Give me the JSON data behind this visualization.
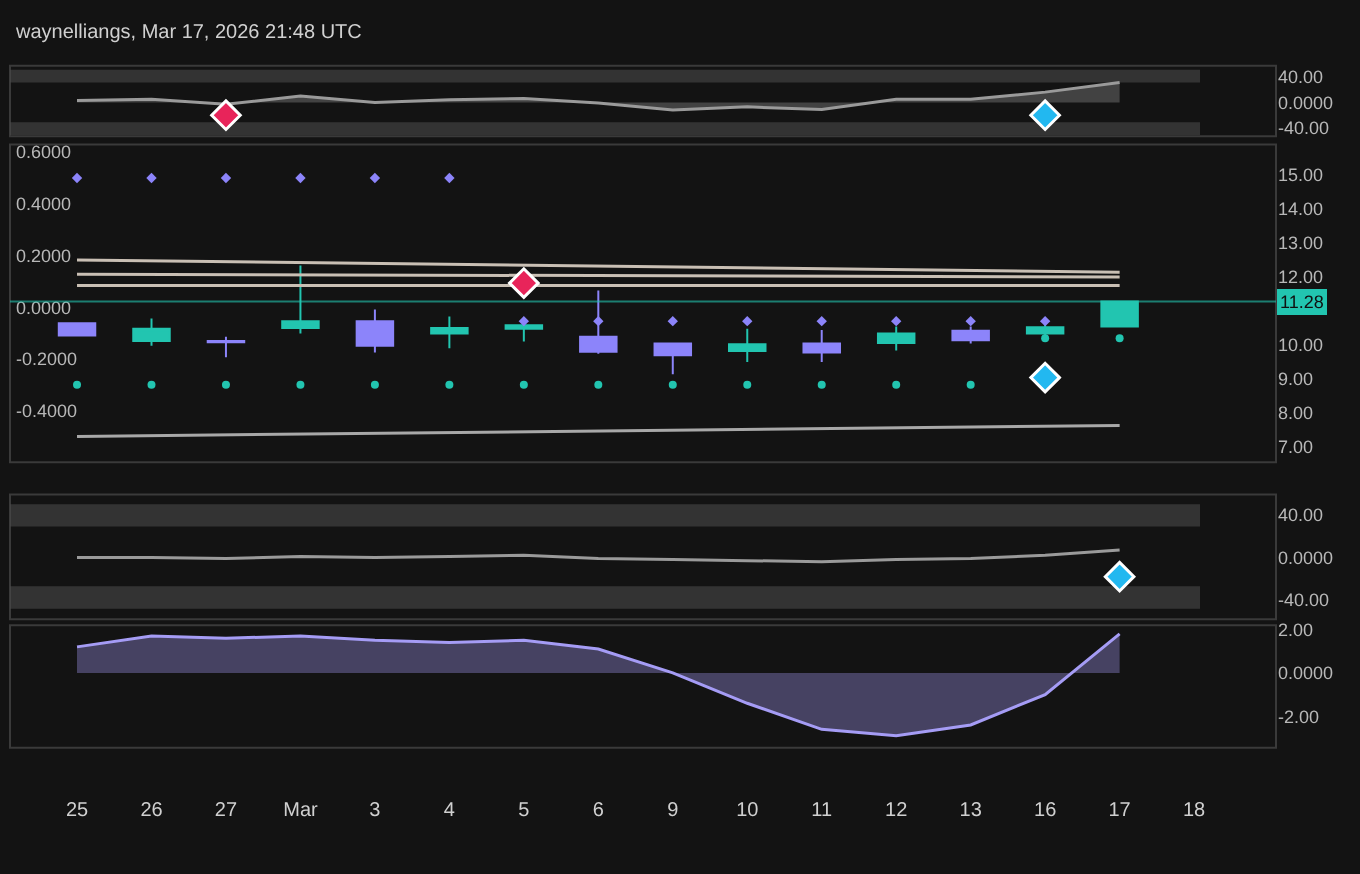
{
  "chart_data": [
    {
      "type": "line",
      "title": "waynelliangs, Mar 17, 2026 21:48 UTC",
      "categories": [
        "25",
        "26",
        "27",
        "Mar",
        "3",
        "4",
        "5",
        "6",
        "9",
        "10",
        "11",
        "12",
        "13",
        "16",
        "17",
        "18"
      ],
      "series": [
        {
          "type": "area",
          "color": "#9a9a9a",
          "values": [
            3,
            5,
            -3,
            10,
            0,
            4,
            6,
            -1,
            -12,
            -7,
            -11,
            5,
            5,
            16,
            31,
            null
          ]
        },
        {
          "type": "scatter",
          "marker": "diamond",
          "color": "#e8245a",
          "x": [
            "27"
          ],
          "values": [
            -20
          ]
        },
        {
          "type": "scatter",
          "marker": "diamond",
          "color": "#22b8f0",
          "x": [
            "16"
          ],
          "values": [
            -20
          ]
        }
      ],
      "ylim": [
        -53,
        57
      ],
      "yticks": [
        {
          "value": 40,
          "label": "40.00"
        },
        {
          "value": 0,
          "label": "0.0000"
        },
        {
          "value": -40,
          "label": "-40.00"
        }
      ],
      "bands": [
        {
          "axis": "y",
          "from": 31,
          "to": 51,
          "color": "#4a4a4a"
        },
        {
          "axis": "y",
          "from": -51,
          "to": -31,
          "color": "#4a4a4a"
        }
      ],
      "tick_labels": "y"
    },
    {
      "type": "candlestick",
      "categories": [
        "25",
        "26",
        "27",
        "Mar",
        "3",
        "4",
        "5",
        "6",
        "9",
        "10",
        "11",
        "12",
        "13",
        "16",
        "17",
        "18"
      ],
      "series": [
        {
          "type": "line",
          "axis": "y2",
          "color": "#c9bfb4",
          "x": [
            "25",
            "17"
          ],
          "values": [
            12.5,
            12.14
          ]
        },
        {
          "type": "line",
          "axis": "y2",
          "color": "#c9bfb4",
          "x": [
            "25",
            "17"
          ],
          "values": [
            12.08,
            12.0
          ]
        },
        {
          "type": "line",
          "axis": "y2",
          "color": "#c9bfb4",
          "x": [
            "25",
            "17"
          ],
          "values": [
            11.75,
            11.75
          ]
        },
        {
          "type": "line",
          "axis": "y2",
          "color": "#a8a8a8",
          "x": [
            "25",
            "17"
          ],
          "values": [
            7.31,
            7.63
          ]
        },
        {
          "type": "scatter",
          "axis": "y",
          "marker": "diamond",
          "color": "#8c84fa",
          "x": [
            "25",
            "26",
            "27",
            "Mar",
            "3",
            "4"
          ],
          "values": [
            0.5,
            0.5,
            0.5,
            0.5,
            0.5,
            0.5
          ]
        },
        {
          "type": "scatter",
          "axis": "y",
          "marker": "circle",
          "color": "#22c5b0",
          "x": [
            "25",
            "26",
            "27",
            "Mar",
            "3",
            "4",
            "5",
            "6",
            "9",
            "10",
            "11",
            "12",
            "13"
          ],
          "values": [
            -0.3,
            -0.3,
            -0.3,
            -0.3,
            -0.3,
            -0.3,
            -0.3,
            -0.3,
            -0.3,
            -0.3,
            -0.3,
            -0.3,
            -0.3
          ]
        },
        {
          "type": "candlestick",
          "axis": "y2",
          "colors": [
            "#8c84fa",
            "#22c5b0",
            "#8c84fa",
            "#22c5b0",
            "#8c84fa",
            "#22c5b0",
            "#22c5b0",
            "#8c84fa",
            "#8c84fa",
            "#22c5b0",
            "#8c84fa",
            "#22c5b0",
            "#8c84fa",
            "#22c5b0",
            "#22c5b0",
            null
          ],
          "ohlc": [
            [
              10.64,
              10.64,
              10.28,
              10.28
            ],
            [
              10.12,
              10.78,
              9.98,
              10.48
            ],
            [
              10.12,
              10.24,
              9.64,
              10.08
            ],
            [
              10.5,
              12.34,
              10.34,
              10.7
            ],
            [
              10.7,
              11.04,
              9.78,
              9.98
            ],
            [
              10.34,
              10.84,
              9.9,
              10.5
            ],
            [
              10.48,
              10.74,
              10.1,
              10.58
            ],
            [
              10.24,
              11.6,
              9.74,
              9.8
            ],
            [
              10.04,
              10.04,
              9.14,
              9.7
            ],
            [
              9.82,
              10.48,
              9.5,
              10.02
            ],
            [
              10.04,
              10.44,
              9.5,
              9.78
            ],
            [
              10.06,
              10.54,
              9.84,
              10.34
            ],
            [
              10.42,
              10.54,
              10.04,
              10.14
            ],
            [
              10.34,
              10.72,
              10.28,
              10.52
            ],
            [
              10.54,
              11.28,
              10.54,
              11.28
            ],
            null
          ]
        },
        {
          "type": "scatter",
          "axis": "y2",
          "marker": "diamond",
          "color": "#8c84fa",
          "x": [
            "5",
            "6",
            "9",
            "10",
            "11",
            "12",
            "13",
            "16"
          ],
          "values": [
            10.7,
            10.7,
            10.7,
            10.7,
            10.7,
            10.7,
            10.7,
            10.7
          ]
        },
        {
          "type": "scatter",
          "axis": "y2",
          "marker": "circle",
          "color": "#22c5b0",
          "x": [
            "16",
            "17"
          ],
          "values": [
            10.2,
            10.2
          ]
        },
        {
          "type": "scatter",
          "axis": "y2",
          "marker": "diamond",
          "color": "#e8245a",
          "x": [
            "5"
          ],
          "values": [
            11.82
          ]
        },
        {
          "type": "scatter",
          "axis": "y2",
          "marker": "diamond",
          "color": "#22b8f0",
          "x": [
            "16"
          ],
          "values": [
            9.04
          ]
        }
      ],
      "ylim": [
        -0.6,
        0.63
      ],
      "yticks": [
        {
          "value": 0.6,
          "label": "0.6000"
        },
        {
          "value": 0.4,
          "label": "0.4000"
        },
        {
          "value": 0.2,
          "label": "0.2000"
        },
        {
          "value": 0,
          "label": "0.0000"
        },
        {
          "value": -0.2,
          "label": "-0.2000"
        },
        {
          "value": -0.4,
          "label": "-0.4000"
        }
      ],
      "y2lim": [
        6.55,
        15.9
      ],
      "y2ticks": [
        {
          "value": 15,
          "label": "15.00"
        },
        {
          "value": 14,
          "label": "14.00"
        },
        {
          "value": 13,
          "label": "13.00"
        },
        {
          "value": 12,
          "label": "12.00"
        },
        {
          "value": 10,
          "label": "10.00"
        },
        {
          "value": 9,
          "label": "9.00"
        },
        {
          "value": 8,
          "label": "8.00"
        },
        {
          "value": 7,
          "label": "7.00"
        }
      ],
      "ref_lines": [
        {
          "axis": "y2",
          "value": 11.28,
          "label": "11.28",
          "color": "#22c5b0"
        }
      ],
      "tick_labels": "y"
    },
    {
      "type": "line",
      "categories": [
        "25",
        "26",
        "27",
        "Mar",
        "3",
        "4",
        "5",
        "6",
        "9",
        "10",
        "11",
        "12",
        "13",
        "16",
        "17",
        "18"
      ],
      "series": [
        {
          "type": "line",
          "color": "#9a9a9a",
          "values": [
            0,
            0,
            -1,
            1,
            0,
            1,
            2,
            -1,
            -2,
            -3,
            -4,
            -2,
            -1,
            2,
            7,
            null
          ]
        },
        {
          "type": "scatter",
          "marker": "diamond",
          "color": "#22b8f0",
          "x": [
            "17"
          ],
          "values": [
            -18
          ]
        }
      ],
      "ylim": [
        -58,
        59
      ],
      "yticks": [
        {
          "value": 40,
          "label": "40.00"
        },
        {
          "value": 0,
          "label": "0.0000"
        },
        {
          "value": -40,
          "label": "-40.00"
        }
      ],
      "bands": [
        {
          "axis": "y",
          "from": 29,
          "to": 50,
          "color": "#4a4a4a"
        },
        {
          "axis": "y",
          "from": -48,
          "to": -27,
          "color": "#4a4a4a"
        }
      ],
      "tick_labels": "y"
    },
    {
      "type": "area",
      "categories": [
        "25",
        "26",
        "27",
        "Mar",
        "3",
        "4",
        "5",
        "6",
        "9",
        "10",
        "11",
        "12",
        "13",
        "16",
        "17",
        "18"
      ],
      "series": [
        {
          "color": "#a59cf5",
          "values": [
            1.2,
            1.7,
            1.6,
            1.7,
            1.5,
            1.4,
            1.5,
            1.1,
            0.0,
            -1.4,
            -2.6,
            -2.9,
            -2.4,
            -1.0,
            1.8,
            null
          ]
        }
      ],
      "ylim": [
        -3.45,
        2.2
      ],
      "yticks": [
        {
          "value": 2,
          "label": "2.00"
        },
        {
          "value": 0,
          "label": "0.0000"
        },
        {
          "value": -2,
          "label": "-2.00"
        }
      ]
    }
  ]
}
